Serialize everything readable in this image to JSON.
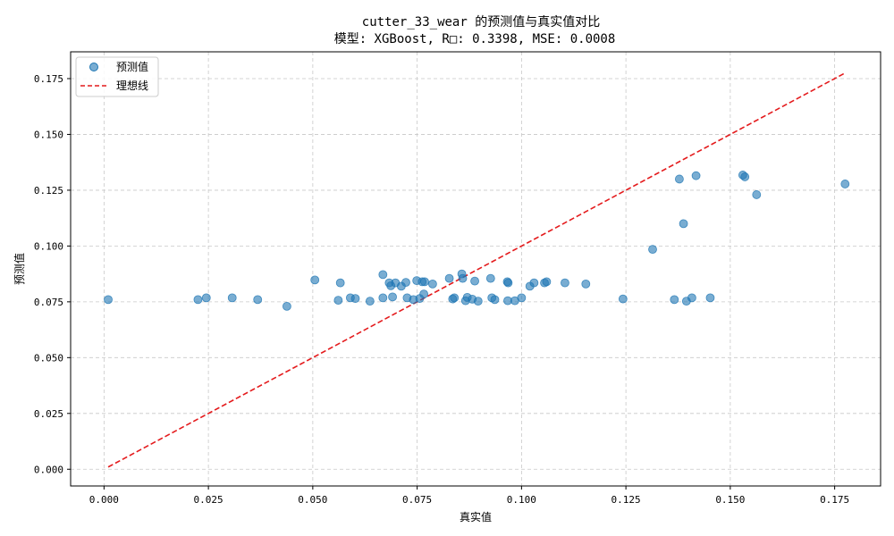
{
  "colors": {
    "points": "#1f77b4",
    "ideal_line": "#e41a1c",
    "grid": "#c8c8c8",
    "axes": "#000000"
  },
  "chart_data": {
    "type": "scatter",
    "title": "cutter_33_wear 的预测值与真实值对比",
    "subtitle": "模型: XGBoost, R□: 0.3398, MSE: 0.0008",
    "xlabel": "真实值",
    "ylabel": "预测值",
    "xlim": [
      -0.008,
      0.186
    ],
    "ylim": [
      -0.0075,
      0.187
    ],
    "xticks": [
      0.0,
      0.025,
      0.05,
      0.075,
      0.1,
      0.125,
      0.15,
      0.175
    ],
    "xtick_labels": [
      "0.000",
      "0.025",
      "0.050",
      "0.075",
      "0.100",
      "0.125",
      "0.150",
      "0.175"
    ],
    "yticks": [
      0.0,
      0.025,
      0.05,
      0.075,
      0.1,
      0.125,
      0.15,
      0.175
    ],
    "ytick_labels": [
      "0.000",
      "0.025",
      "0.050",
      "0.075",
      "0.100",
      "0.125",
      "0.150",
      "0.175"
    ],
    "grid": true,
    "legend": {
      "placement": "top-left"
    },
    "series": [
      {
        "name": "预测值",
        "kind": "scatter",
        "x": [
          0.001,
          0.0225,
          0.0245,
          0.0307,
          0.0368,
          0.0438,
          0.0505,
          0.0561,
          0.0566,
          0.059,
          0.0602,
          0.0637,
          0.0668,
          0.0668,
          0.0683,
          0.0687,
          0.0691,
          0.0698,
          0.0712,
          0.0723,
          0.0726,
          0.0741,
          0.0749,
          0.0756,
          0.0762,
          0.0766,
          0.0768,
          0.0787,
          0.0827,
          0.0835,
          0.0839,
          0.0857,
          0.0859,
          0.0866,
          0.087,
          0.0882,
          0.0888,
          0.0896,
          0.0926,
          0.0929,
          0.0936,
          0.0966,
          0.0968,
          0.0967,
          0.0984,
          0.1,
          0.102,
          0.103,
          0.1055,
          0.106,
          0.1104,
          0.1154,
          0.1243,
          0.1314,
          0.1366,
          0.1378,
          0.1388,
          0.1395,
          0.1408,
          0.1418,
          0.1452,
          0.153,
          0.1535,
          0.1563,
          0.1775
        ],
        "y": [
          0.076,
          0.076,
          0.0768,
          0.0768,
          0.076,
          0.073,
          0.0848,
          0.0757,
          0.0835,
          0.0768,
          0.0765,
          0.0753,
          0.0872,
          0.0768,
          0.0835,
          0.0822,
          0.0772,
          0.0835,
          0.082,
          0.0837,
          0.0768,
          0.076,
          0.0845,
          0.0765,
          0.084,
          0.0785,
          0.084,
          0.083,
          0.0855,
          0.0763,
          0.0768,
          0.0875,
          0.0855,
          0.0755,
          0.077,
          0.0762,
          0.0843,
          0.0753,
          0.0855,
          0.0768,
          0.076,
          0.084,
          0.0835,
          0.0755,
          0.0755,
          0.0768,
          0.082,
          0.0835,
          0.0835,
          0.084,
          0.0835,
          0.083,
          0.0763,
          0.0985,
          0.076,
          0.13,
          0.11,
          0.0753,
          0.0768,
          0.1315,
          0.0768,
          0.1318,
          0.131,
          0.123,
          0.1278
        ]
      },
      {
        "name": "理想线",
        "kind": "line",
        "x": [
          0.001,
          0.1775
        ],
        "y": [
          0.001,
          0.1775
        ]
      }
    ]
  }
}
